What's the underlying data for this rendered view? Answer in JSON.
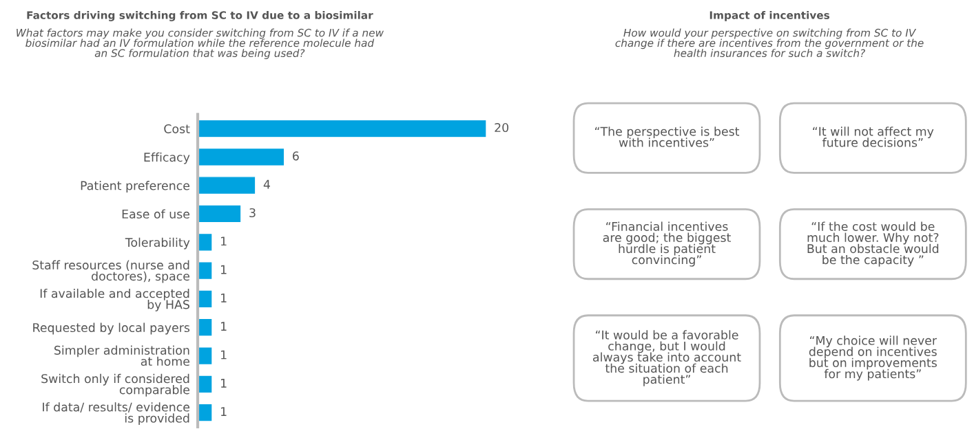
{
  "chart_data": [
    {
      "type": "bar",
      "orientation": "horizontal",
      "title": "Factors driving switching from SC to IV due to a biosimilar",
      "subtitle": "What factors may make you consider switching from SC to IV if a new\nbiosimilar had an IV formulation while the reference molecule had\nan SC formulation that was being used?",
      "categories": [
        "Cost",
        "Efficacy",
        "Patient preference",
        "Ease of use",
        "Tolerability",
        "Staff resources (nurse and\ndoctores), space",
        "If available and accepted\nby HAS",
        "Requested by local payers",
        "Simpler administration\nat home",
        "Switch only if considered\ncomparable",
        "If data/ results/ evidence\nis provided"
      ],
      "values": [
        20,
        6,
        4,
        3,
        1,
        1,
        1,
        1,
        1,
        1,
        1
      ],
      "color": "#00a3e0",
      "data_labels": true,
      "tick_labels": "y"
    },
    {
      "type": "other",
      "title": "Impact of incentives",
      "subtitle": "How would your perspective on switching from SC to IV\nchange if there are incentives from the government or the\nhealth insurances for such a switch?",
      "annotations": [
        "“The perspective is best\nwith incentives”",
        "“It will not affect my\nfuture decisions”",
        "“Financial incentives\nare good; the biggest\nhurdle is patient\nconvincing”",
        "“If the cost would be\nmuch lower. Why not?\nBut an obstacle would\nbe the capacity ”",
        "“It would be a favorable\nchange, but I would\nalways take into account\nthe situation of each\npatient”",
        "“My choice will never\ndepend on incentives\nbut on improvements\nfor my patients”"
      ]
    }
  ]
}
